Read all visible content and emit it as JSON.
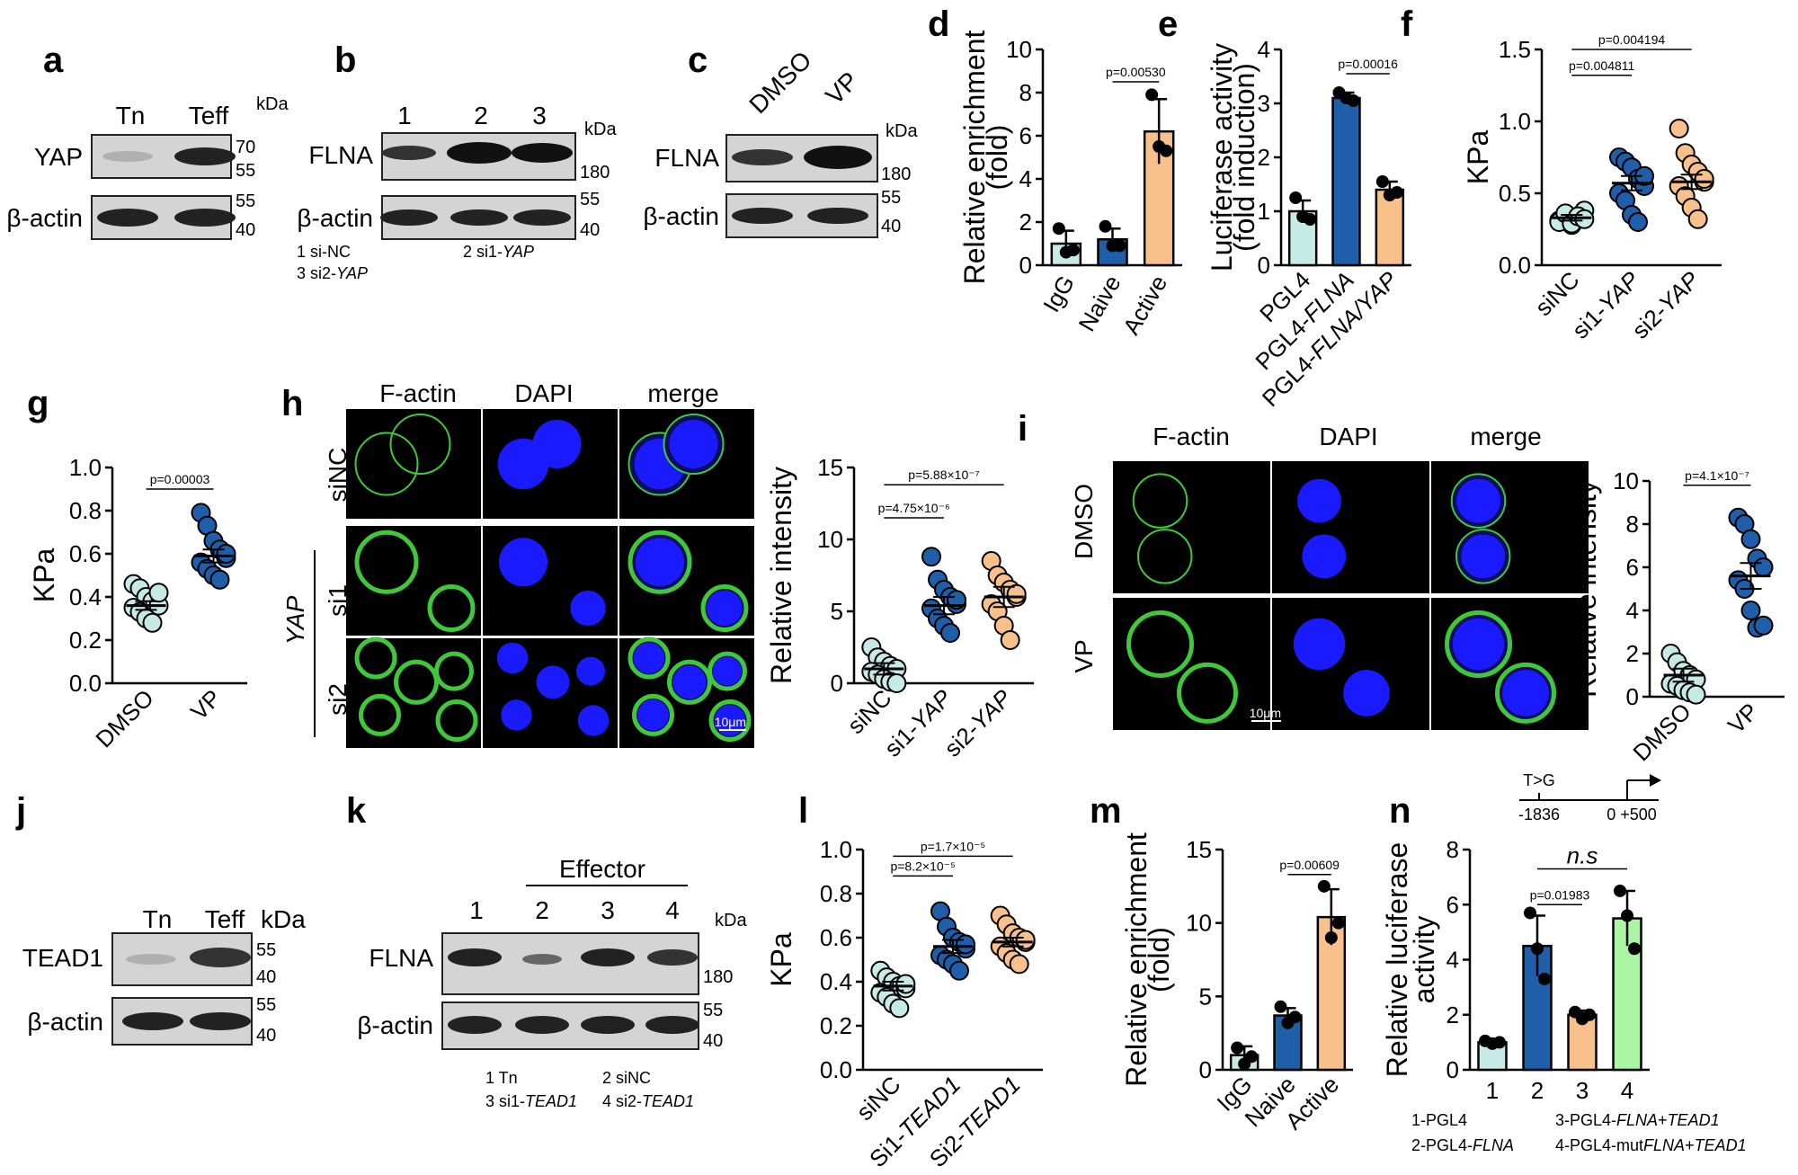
{
  "colors": {
    "light": "#c6ebe6",
    "blue": "#1f5ea8",
    "orange": "#f8c08a",
    "green": "#a9f5a4",
    "green_fill": "#a9f5a4",
    "black": "#000000",
    "fluor_green": "#3fc93a",
    "fluor_blue": "#1a1aff"
  },
  "panel_labels": [
    "a",
    "b",
    "c",
    "d",
    "e",
    "f",
    "g",
    "h",
    "i",
    "j",
    "k",
    "l",
    "m",
    "n"
  ],
  "blots": {
    "a": {
      "lanes": [
        "Tn",
        "Teff"
      ],
      "rows": [
        {
          "name": "YAP",
          "markers": [
            "70",
            "55"
          ]
        },
        {
          "name": "β-actin",
          "markers": [
            "55",
            "40"
          ]
        }
      ],
      "kda": "kDa"
    },
    "b": {
      "lanes": [
        "1",
        "2",
        "3"
      ],
      "rows": [
        {
          "name": "FLNA",
          "markers": [
            "180"
          ]
        },
        {
          "name": "β-actin",
          "markers": [
            "55",
            "40"
          ]
        }
      ],
      "kda": "kDa",
      "legend": [
        "1 si-NC",
        "2 si1-",
        "YAP",
        "3 si2-",
        "YAP"
      ]
    },
    "c": {
      "lanes": [
        "DMSO",
        "VP"
      ],
      "rows": [
        {
          "name": "FLNA",
          "markers": [
            "180"
          ]
        },
        {
          "name": "β-actin",
          "markers": [
            "55",
            "40"
          ]
        }
      ],
      "kda": "kDa"
    },
    "j": {
      "lanes": [
        "Tn",
        "Teff"
      ],
      "rows": [
        {
          "name": "TEAD1",
          "markers": [
            "55",
            "40"
          ]
        },
        {
          "name": "β-actin",
          "markers": [
            "55",
            "40"
          ]
        }
      ],
      "kda": "kDa"
    },
    "k": {
      "header": "Effector",
      "lanes": [
        "1",
        "2",
        "3",
        "4"
      ],
      "rows": [
        {
          "name": "FLNA",
          "markers": [
            "180"
          ]
        },
        {
          "name": "β-actin",
          "markers": [
            "55",
            "40"
          ]
        }
      ],
      "kda": "kDa",
      "legend": [
        "1 Tn",
        "2 siNC",
        "3 si1-",
        "TEAD1",
        "4 si2-",
        "TEAD1"
      ]
    }
  },
  "images": {
    "h": {
      "cols": [
        "F-actin",
        "DAPI",
        "merge"
      ],
      "rows": [
        "siNC",
        "si1",
        "si2"
      ],
      "group": "YAP",
      "scale": "10μm"
    },
    "i": {
      "cols": [
        "F-actin",
        "DAPI",
        "merge"
      ],
      "rows": [
        "DMSO",
        "VP"
      ],
      "scale": "10μm"
    }
  },
  "chart_data": [
    {
      "id": "d",
      "type": "bar",
      "categories": [
        "IgG",
        "Naive",
        "Active"
      ],
      "values": [
        1.0,
        1.2,
        6.2
      ],
      "errors": [
        0.6,
        0.5,
        1.5
      ],
      "points": [
        [
          1.7,
          0.6,
          0.7
        ],
        [
          1.8,
          0.9,
          0.9
        ],
        [
          7.9,
          5.5,
          5.3
        ]
      ],
      "ylabel": [
        "Relative enrichment",
        "(fold)"
      ],
      "ylim": [
        0,
        10
      ],
      "yticks": [
        0,
        2,
        4,
        6,
        8,
        10
      ],
      "colors": [
        "light",
        "blue",
        "orange"
      ],
      "pvals": [
        {
          "text": "p=0.00530",
          "from": 1,
          "to": 2,
          "y": 8.5
        }
      ]
    },
    {
      "id": "e",
      "type": "bar",
      "categories": [
        "PGL4",
        "PGL4-FLNA",
        "PGL4-FLNA/YAP"
      ],
      "values": [
        1.0,
        3.1,
        1.4
      ],
      "errors": [
        0.2,
        0.1,
        0.15
      ],
      "points": [
        [
          1.25,
          0.9,
          0.85
        ],
        [
          3.2,
          3.1,
          3.05
        ],
        [
          1.55,
          1.3,
          1.35
        ]
      ],
      "ylabel": [
        "Luciferase activity",
        "(fold induction)"
      ],
      "ylim": [
        0,
        4
      ],
      "yticks": [
        0,
        1,
        2,
        3,
        4
      ],
      "colors": [
        "light",
        "blue",
        "orange"
      ],
      "pvals": [
        {
          "text": "p=0.00016",
          "from": 1,
          "to": 2,
          "y": 3.55
        }
      ]
    },
    {
      "id": "f",
      "type": "scatter",
      "categories": [
        "siNC",
        "si1-YAP",
        "si2-YAP"
      ],
      "means": [
        0.33,
        0.57,
        0.58
      ],
      "sems": [
        0.02,
        0.05,
        0.05
      ],
      "points": [
        [
          0.31,
          0.35,
          0.28,
          0.33,
          0.38,
          0.3,
          0.36,
          0.29,
          0.34,
          0.32
        ],
        [
          0.75,
          0.72,
          0.68,
          0.6,
          0.55,
          0.5,
          0.45,
          0.35,
          0.3,
          0.62
        ],
        [
          0.95,
          0.78,
          0.7,
          0.65,
          0.58,
          0.55,
          0.48,
          0.4,
          0.32,
          0.6
        ]
      ],
      "ylabel": [
        "KPa"
      ],
      "ylim": [
        0,
        1.5
      ],
      "yticks": [
        0,
        0.5,
        1.0,
        1.5
      ],
      "colors": [
        "light",
        "blue",
        "orange"
      ],
      "pvals": [
        {
          "text": "p=0.004811",
          "from": 0,
          "to": 1,
          "y": 1.32
        },
        {
          "text": "p=0.004194",
          "from": 0,
          "to": 2,
          "y": 1.5
        }
      ]
    },
    {
      "id": "g",
      "type": "scatter",
      "categories": [
        "DMSO",
        "VP"
      ],
      "means": [
        0.36,
        0.59
      ],
      "sems": [
        0.02,
        0.03
      ],
      "points": [
        [
          0.46,
          0.44,
          0.4,
          0.38,
          0.36,
          0.35,
          0.33,
          0.3,
          0.28,
          0.42
        ],
        [
          0.79,
          0.73,
          0.66,
          0.62,
          0.58,
          0.56,
          0.53,
          0.5,
          0.48,
          0.6
        ]
      ],
      "ylabel": [
        "KPa"
      ],
      "ylim": [
        0,
        1.0
      ],
      "yticks": [
        0.0,
        0.2,
        0.4,
        0.6,
        0.8,
        1.0
      ],
      "colors": [
        "light",
        "blue"
      ],
      "pvals": [
        {
          "text": "p=0.00003",
          "from": 0,
          "to": 1,
          "y": 0.9
        }
      ]
    },
    {
      "id": "h",
      "type": "scatter",
      "categories": [
        "siNC",
        "si1-YAP",
        "si2-YAP"
      ],
      "means": [
        1.0,
        5.4,
        6.0
      ],
      "sems": [
        0.4,
        0.6,
        0.7
      ],
      "points": [
        [
          2.5,
          1.8,
          1.5,
          1.2,
          1.0,
          0.8,
          0.6,
          0.3,
          0.1,
          0.0
        ],
        [
          8.8,
          7.2,
          6.5,
          6.0,
          5.5,
          5.2,
          4.5,
          4.0,
          3.5,
          5.8
        ],
        [
          8.5,
          7.5,
          7.0,
          6.5,
          6.0,
          5.5,
          5.0,
          4.0,
          3.0,
          6.2
        ]
      ],
      "ylabel": [
        "Relative intensity"
      ],
      "ylim": [
        0,
        15
      ],
      "yticks": [
        0,
        5,
        10,
        15
      ],
      "colors": [
        "light",
        "blue",
        "orange"
      ],
      "pvals": [
        {
          "text": "p=4.75×10⁻⁶",
          "from": 0,
          "to": 1,
          "y": 11.5
        },
        {
          "text": "p=5.88×10⁻⁷",
          "from": 0,
          "to": 2,
          "y": 13.8
        }
      ]
    },
    {
      "id": "i",
      "type": "scatter",
      "categories": [
        "DMSO",
        "VP"
      ],
      "means": [
        1.0,
        5.6
      ],
      "sems": [
        0.3,
        0.6
      ],
      "points": [
        [
          2.0,
          1.6,
          1.2,
          1.0,
          0.8,
          0.6,
          0.5,
          0.3,
          0.2,
          0.1
        ],
        [
          8.3,
          8.0,
          7.3,
          6.4,
          6.0,
          5.4,
          5.0,
          4.0,
          3.2,
          3.3
        ]
      ],
      "ylabel": [
        "Relative intensity"
      ],
      "ylim": [
        0,
        10
      ],
      "yticks": [
        0,
        2,
        4,
        6,
        8,
        10
      ],
      "colors": [
        "light",
        "blue"
      ],
      "pvals": [
        {
          "text": "p=4.1×10⁻⁷",
          "from": 0,
          "to": 1,
          "y": 9.8
        }
      ]
    },
    {
      "id": "l",
      "type": "scatter",
      "categories": [
        "siNC",
        "Si1-TEAD1",
        "Si2-TEAD1"
      ],
      "means": [
        0.38,
        0.56,
        0.58
      ],
      "sems": [
        0.02,
        0.03,
        0.02
      ],
      "points": [
        [
          0.45,
          0.42,
          0.4,
          0.38,
          0.37,
          0.35,
          0.33,
          0.3,
          0.28,
          0.39
        ],
        [
          0.72,
          0.65,
          0.6,
          0.58,
          0.55,
          0.52,
          0.5,
          0.48,
          0.45,
          0.57
        ],
        [
          0.7,
          0.66,
          0.62,
          0.6,
          0.58,
          0.56,
          0.53,
          0.5,
          0.48,
          0.59
        ]
      ],
      "ylabel": [
        "KPa"
      ],
      "ylim": [
        0,
        1.0
      ],
      "yticks": [
        0.0,
        0.2,
        0.4,
        0.6,
        0.8,
        1.0
      ],
      "colors": [
        "light",
        "blue",
        "orange"
      ],
      "pvals": [
        {
          "text": "p=8.2×10⁻⁵",
          "from": 0,
          "to": 1,
          "y": 0.88
        },
        {
          "text": "p=1.7×10⁻⁵",
          "from": 0,
          "to": 2,
          "y": 0.97
        }
      ]
    },
    {
      "id": "m",
      "type": "bar",
      "categories": [
        "IgG",
        "Naive",
        "Active"
      ],
      "values": [
        1.0,
        3.7,
        10.4
      ],
      "errors": [
        0.6,
        0.5,
        1.9
      ],
      "points": [
        [
          1.5,
          0.4,
          0.9
        ],
        [
          4.3,
          3.2,
          3.6
        ],
        [
          12.5,
          9.0,
          10.0
        ]
      ],
      "ylabel": [
        "Relative enrichment",
        "(fold)"
      ],
      "ylim": [
        0,
        15
      ],
      "yticks": [
        0,
        5,
        10,
        15
      ],
      "colors": [
        "light",
        "blue",
        "orange"
      ],
      "pvals": [
        {
          "text": "p=0.00609",
          "from": 1,
          "to": 2,
          "y": 13.3
        }
      ]
    },
    {
      "id": "n",
      "type": "bar",
      "categories": [
        "1",
        "2",
        "3",
        "4"
      ],
      "values": [
        1.0,
        4.5,
        2.0,
        5.5
      ],
      "errors": [
        0.1,
        1.1,
        0.15,
        1.0
      ],
      "points": [
        [
          1.05,
          0.95,
          1.0
        ],
        [
          5.7,
          4.4,
          3.3
        ],
        [
          2.1,
          1.85,
          2.0
        ],
        [
          6.5,
          5.6,
          4.4
        ]
      ],
      "ylabel": [
        "Relative luciferase",
        "activity"
      ],
      "ylim": [
        0,
        8
      ],
      "yticks": [
        0,
        2,
        4,
        6,
        8
      ],
      "colors": [
        "light",
        "blue",
        "orange",
        "green"
      ],
      "pvals": [
        {
          "text": "p=0.01983",
          "from": 1,
          "to": 2,
          "y": 6.0
        },
        {
          "text": "n.s",
          "from": 1,
          "to": 3,
          "y": 7.3,
          "italic": true
        }
      ],
      "legend": [
        "1-PGL4",
        "3-PGL4-",
        "FLNA",
        "+",
        "TEAD1",
        "2-PGL4-",
        "FLNA",
        "4-PGL4-mut",
        "FLNA",
        "+",
        "TEAD1"
      ],
      "schematic": {
        "mut": "T>G",
        "left": "-1836",
        "right": "0 +500"
      }
    }
  ]
}
